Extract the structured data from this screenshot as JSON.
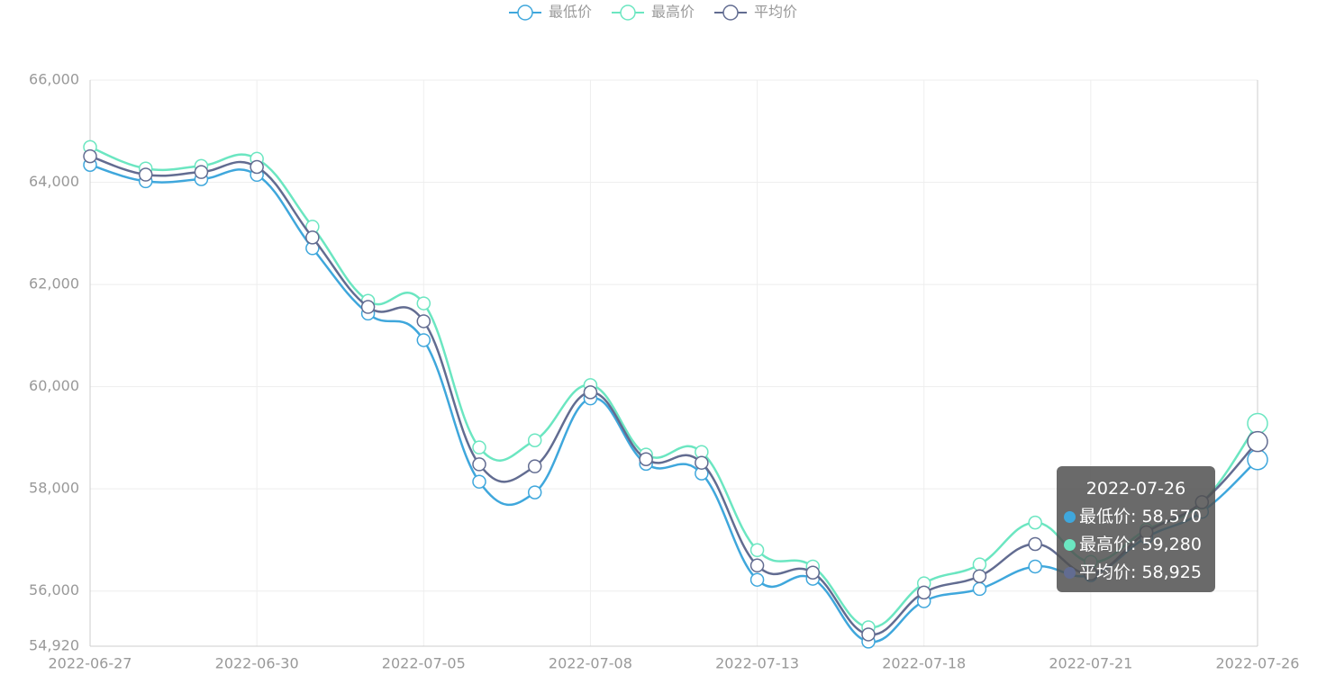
{
  "chart_data": {
    "type": "line",
    "categories": [
      "2022-06-27",
      null,
      null,
      "2022-06-30",
      null,
      null,
      "2022-07-05",
      null,
      null,
      "2022-07-08",
      null,
      null,
      "2022-07-13",
      null,
      null,
      "2022-07-18",
      null,
      null,
      "2022-07-21",
      null,
      null,
      "2022-07-26"
    ],
    "series": [
      {
        "name": "最低价",
        "color": "#3fa7dc",
        "values": [
          64340,
          64020,
          64060,
          64145,
          62710,
          61430,
          60910,
          58140,
          57930,
          59770,
          58490,
          58300,
          56220,
          56240,
          55010,
          55800,
          56040,
          56480,
          56310,
          57050,
          57550,
          58570
        ]
      },
      {
        "name": "最高价",
        "color": "#6be6c1",
        "values": [
          64690,
          64270,
          64320,
          64460,
          63130,
          61680,
          61630,
          58810,
          58950,
          60030,
          58670,
          58720,
          56800,
          56480,
          55290,
          56150,
          56520,
          57340,
          56570,
          57200,
          57730,
          59280
        ]
      },
      {
        "name": "平均价",
        "color": "#626c91",
        "values": [
          64510,
          64150,
          64200,
          64300,
          62920,
          61560,
          61280,
          58480,
          58440,
          59890,
          58580,
          58510,
          56500,
          56360,
          55150,
          55970,
          56290,
          56920,
          56340,
          57150,
          57740,
          58925
        ]
      }
    ],
    "ylim": [
      54920,
      66000
    ],
    "yticks": [
      {
        "value": 54920,
        "label": "54,920"
      },
      {
        "value": 56000,
        "label": "56,000"
      },
      {
        "value": 58000,
        "label": "58,000"
      },
      {
        "value": 60000,
        "label": "60,000"
      },
      {
        "value": 62000,
        "label": "62,000"
      },
      {
        "value": 64000,
        "label": "64,000"
      },
      {
        "value": 66000,
        "label": "66,000"
      }
    ],
    "grid": true,
    "legend": "top",
    "tooltip": {
      "category_index": 21,
      "rows": [
        "最低价: 58,570",
        "最高价: 59,280",
        "平均价: 58,925"
      ]
    }
  }
}
